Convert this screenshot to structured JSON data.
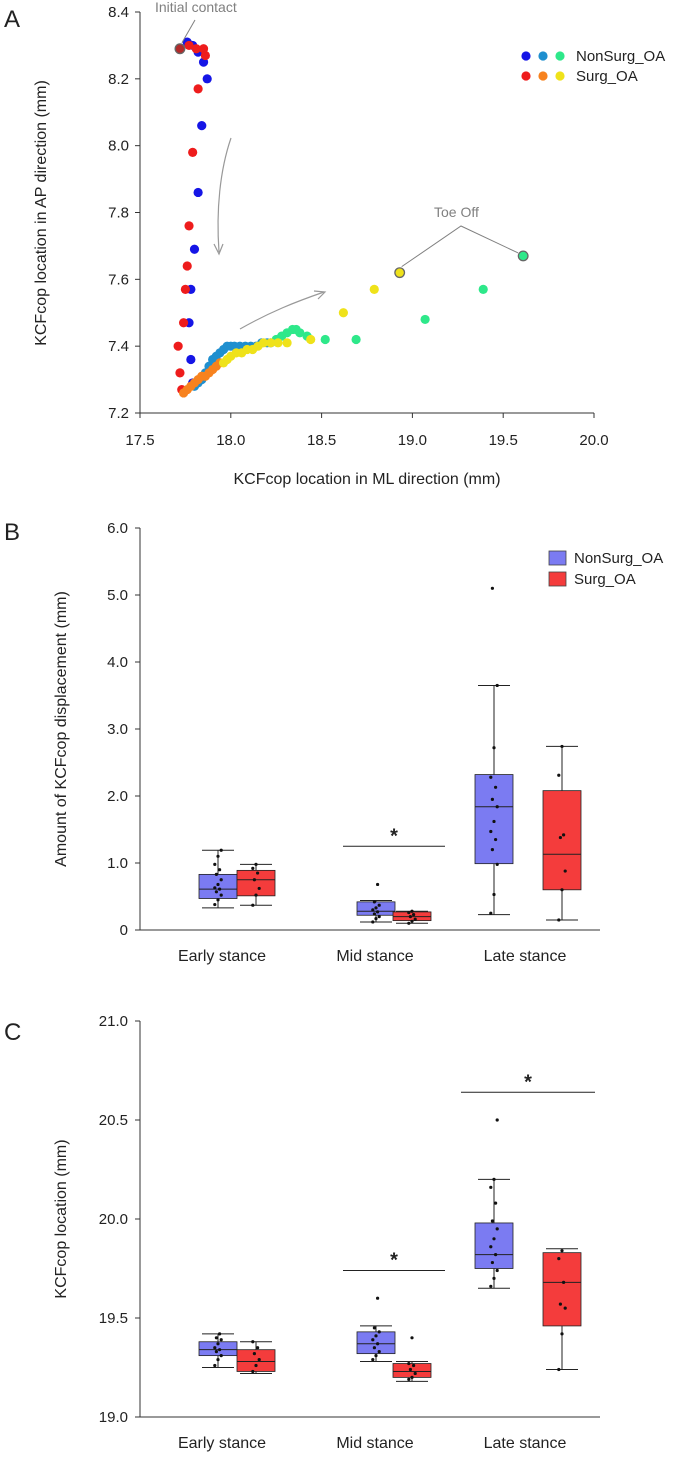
{
  "colors": {
    "nonsurg": "#7b7bf2",
    "surg": "#f43c3c",
    "nonsurg_early": "#1515e6",
    "nonsurg_mid": "#1f8fcf",
    "nonsurg_late": "#2ee88a",
    "surg_early": "#ee1c1c",
    "surg_mid": "#f7821e",
    "surg_late": "#efe21a",
    "annotation": "#808080",
    "axis": "#333333"
  },
  "chart_data": [
    {
      "panel": "A",
      "type": "scatter",
      "xlabel": "KCFcop location in ML direction (mm)",
      "ylabel": "KCFcop location in AP direction (mm)",
      "xlim": [
        17.5,
        20.0
      ],
      "ylim": [
        7.2,
        8.4
      ],
      "xticks": [
        "17.5",
        "18.0",
        "18.5",
        "19.0",
        "19.5",
        "20.0"
      ],
      "yticks": [
        "7.2",
        "7.4",
        "7.6",
        "7.8",
        "8.0",
        "8.2",
        "8.4"
      ],
      "legend": {
        "position": "top-right",
        "entries": [
          "NonSurg_OA",
          "Surg_OA"
        ]
      },
      "annotations": [
        "Initial contact",
        "Toe Off"
      ],
      "series": [
        {
          "name": "NonSurg_OA early stance",
          "group": "NonSurg_OA",
          "phase": "early",
          "x": [
            17.76,
            17.79,
            17.82,
            17.85,
            17.87,
            17.84,
            17.82,
            17.8,
            17.78,
            17.77,
            17.78,
            17.79
          ],
          "y": [
            8.31,
            8.3,
            8.28,
            8.25,
            8.2,
            8.06,
            7.86,
            7.69,
            7.57,
            7.47,
            7.36,
            7.29
          ]
        },
        {
          "name": "NonSurg_OA mid stance",
          "group": "NonSurg_OA",
          "phase": "mid",
          "x": [
            17.8,
            17.82,
            17.84,
            17.86,
            17.88,
            17.9,
            17.92,
            17.94,
            17.96,
            17.98,
            18.0,
            18.02,
            18.05,
            18.08,
            18.11,
            18.14,
            18.17,
            18.2,
            18.22
          ],
          "y": [
            7.28,
            7.29,
            7.3,
            7.32,
            7.34,
            7.36,
            7.37,
            7.38,
            7.39,
            7.4,
            7.4,
            7.4,
            7.4,
            7.4,
            7.4,
            7.4,
            7.41,
            7.41,
            7.41
          ]
        },
        {
          "name": "NonSurg_OA late stance",
          "group": "NonSurg_OA",
          "phase": "late",
          "x": [
            18.25,
            18.28,
            18.31,
            18.34,
            18.36,
            18.38,
            18.42,
            18.52,
            18.69,
            19.07,
            19.39,
            19.61
          ],
          "y": [
            7.42,
            7.43,
            7.44,
            7.45,
            7.45,
            7.44,
            7.43,
            7.42,
            7.42,
            7.48,
            7.57,
            7.67
          ]
        },
        {
          "name": "Surg_OA early stance",
          "group": "Surg_OA",
          "phase": "early",
          "x": [
            17.72,
            17.77,
            17.81,
            17.85,
            17.86,
            17.82,
            17.79,
            17.77,
            17.76,
            17.75,
            17.74,
            17.71,
            17.72,
            17.73
          ],
          "y": [
            8.29,
            8.3,
            8.29,
            8.29,
            8.27,
            8.17,
            7.98,
            7.76,
            7.64,
            7.57,
            7.47,
            7.4,
            7.32,
            7.27
          ]
        },
        {
          "name": "Surg_OA mid stance",
          "group": "Surg_OA",
          "phase": "mid",
          "x": [
            17.74,
            17.76,
            17.78,
            17.8,
            17.82,
            17.84,
            17.86,
            17.88,
            17.9,
            17.92,
            17.94
          ],
          "y": [
            7.26,
            7.27,
            7.28,
            7.29,
            7.3,
            7.31,
            7.31,
            7.32,
            7.33,
            7.34,
            7.35
          ]
        },
        {
          "name": "Surg_OA late stance",
          "group": "Surg_OA",
          "phase": "late",
          "x": [
            17.96,
            17.98,
            18.0,
            18.03,
            18.06,
            18.09,
            18.12,
            18.15,
            18.18,
            18.22,
            18.26,
            18.31,
            18.44,
            18.62,
            18.79,
            18.93
          ],
          "y": [
            7.35,
            7.36,
            7.37,
            7.38,
            7.38,
            7.39,
            7.39,
            7.4,
            7.41,
            7.41,
            7.41,
            7.41,
            7.42,
            7.5,
            7.57,
            7.62
          ]
        }
      ],
      "initial_contact": [
        {
          "x": 17.72,
          "y": 8.29
        }
      ],
      "toe_off": [
        {
          "x": 18.93,
          "y": 7.62,
          "group": "Surg_OA"
        },
        {
          "x": 19.61,
          "y": 7.67,
          "group": "NonSurg_OA"
        }
      ]
    },
    {
      "panel": "B",
      "type": "box",
      "ylabel": "Amount of KCFcop displacement (mm)",
      "categories": [
        "Early stance",
        "Mid stance",
        "Late stance"
      ],
      "ylim": [
        0,
        6.0
      ],
      "yticks": [
        "0",
        "1.0",
        "2.0",
        "3.0",
        "4.0",
        "5.0",
        "6.0"
      ],
      "legend": {
        "position": "top-right",
        "entries": [
          "NonSurg_OA",
          "Surg_OA"
        ]
      },
      "significance": [
        {
          "category": "Mid stance",
          "label": "*",
          "y": 1.25
        }
      ],
      "series": [
        {
          "name": "NonSurg_OA",
          "boxes": [
            {
              "min": 0.33,
              "q1": 0.47,
              "median": 0.61,
              "q3": 0.83,
              "max": 1.19,
              "points": [
                0.38,
                0.45,
                0.52,
                0.57,
                0.61,
                0.63,
                0.68,
                0.75,
                0.83,
                0.9,
                0.98,
                1.1,
                1.19
              ]
            },
            {
              "min": 0.12,
              "q1": 0.22,
              "median": 0.28,
              "q3": 0.42,
              "max": 0.44,
              "points": [
                0.12,
                0.17,
                0.2,
                0.24,
                0.27,
                0.3,
                0.33,
                0.37,
                0.42,
                0.68
              ]
            },
            {
              "min": 0.23,
              "q1": 0.99,
              "median": 1.84,
              "q3": 2.32,
              "max": 3.65,
              "points": [
                0.25,
                0.53,
                0.98,
                1.2,
                1.35,
                1.47,
                1.62,
                1.84,
                1.95,
                2.13,
                2.28,
                2.72,
                3.65,
                5.1
              ]
            }
          ]
        },
        {
          "name": "Surg_OA",
          "boxes": [
            {
              "min": 0.37,
              "q1": 0.51,
              "median": 0.75,
              "q3": 0.89,
              "max": 0.98,
              "points": [
                0.37,
                0.52,
                0.62,
                0.75,
                0.85,
                0.92,
                0.98
              ]
            },
            {
              "min": 0.1,
              "q1": 0.14,
              "median": 0.2,
              "q3": 0.27,
              "max": 0.28,
              "points": [
                0.1,
                0.13,
                0.16,
                0.2,
                0.23,
                0.26,
                0.28
              ]
            },
            {
              "min": 0.15,
              "q1": 0.6,
              "median": 1.13,
              "q3": 2.08,
              "max": 2.74,
              "points": [
                0.15,
                0.6,
                0.88,
                1.38,
                1.42,
                2.31,
                2.74
              ]
            }
          ]
        }
      ]
    },
    {
      "panel": "C",
      "type": "box",
      "ylabel": "KCFcop location (mm)",
      "categories": [
        "Early stance",
        "Mid stance",
        "Late stance"
      ],
      "ylim": [
        19.0,
        21.0
      ],
      "yticks": [
        "19.0",
        "19.5",
        "20.0",
        "20.5",
        "21.0"
      ],
      "significance": [
        {
          "category": "Mid stance",
          "label": "*",
          "y": 19.74
        },
        {
          "category": "Late stance",
          "label": "*",
          "y": 20.64
        }
      ],
      "series": [
        {
          "name": "NonSurg_OA",
          "boxes": [
            {
              "min": 19.25,
              "q1": 19.31,
              "median": 19.34,
              "q3": 19.38,
              "max": 19.42,
              "points": [
                19.26,
                19.29,
                19.31,
                19.33,
                19.34,
                19.35,
                19.37,
                19.39,
                19.4,
                19.42
              ]
            },
            {
              "min": 19.28,
              "q1": 19.32,
              "median": 19.37,
              "q3": 19.43,
              "max": 19.46,
              "points": [
                19.29,
                19.31,
                19.33,
                19.35,
                19.37,
                19.39,
                19.41,
                19.43,
                19.45,
                19.6
              ]
            },
            {
              "min": 19.65,
              "q1": 19.75,
              "median": 19.82,
              "q3": 19.98,
              "max": 20.2,
              "points": [
                19.66,
                19.7,
                19.74,
                19.78,
                19.82,
                19.86,
                19.9,
                19.95,
                19.99,
                20.08,
                20.16,
                20.2,
                20.5
              ]
            }
          ]
        },
        {
          "name": "Surg_OA",
          "boxes": [
            {
              "min": 19.22,
              "q1": 19.23,
              "median": 19.28,
              "q3": 19.34,
              "max": 19.38,
              "points": [
                19.23,
                19.26,
                19.29,
                19.32,
                19.35,
                19.38
              ]
            },
            {
              "min": 19.18,
              "q1": 19.2,
              "median": 19.23,
              "q3": 19.27,
              "max": 19.28,
              "points": [
                19.19,
                19.2,
                19.22,
                19.24,
                19.26,
                19.27,
                19.4
              ]
            },
            {
              "min": 19.24,
              "q1": 19.46,
              "median": 19.68,
              "q3": 19.83,
              "max": 19.85,
              "points": [
                19.24,
                19.42,
                19.55,
                19.57,
                19.68,
                19.8,
                19.84
              ]
            }
          ]
        }
      ]
    }
  ],
  "panel_labels": [
    "A",
    "B",
    "C"
  ]
}
